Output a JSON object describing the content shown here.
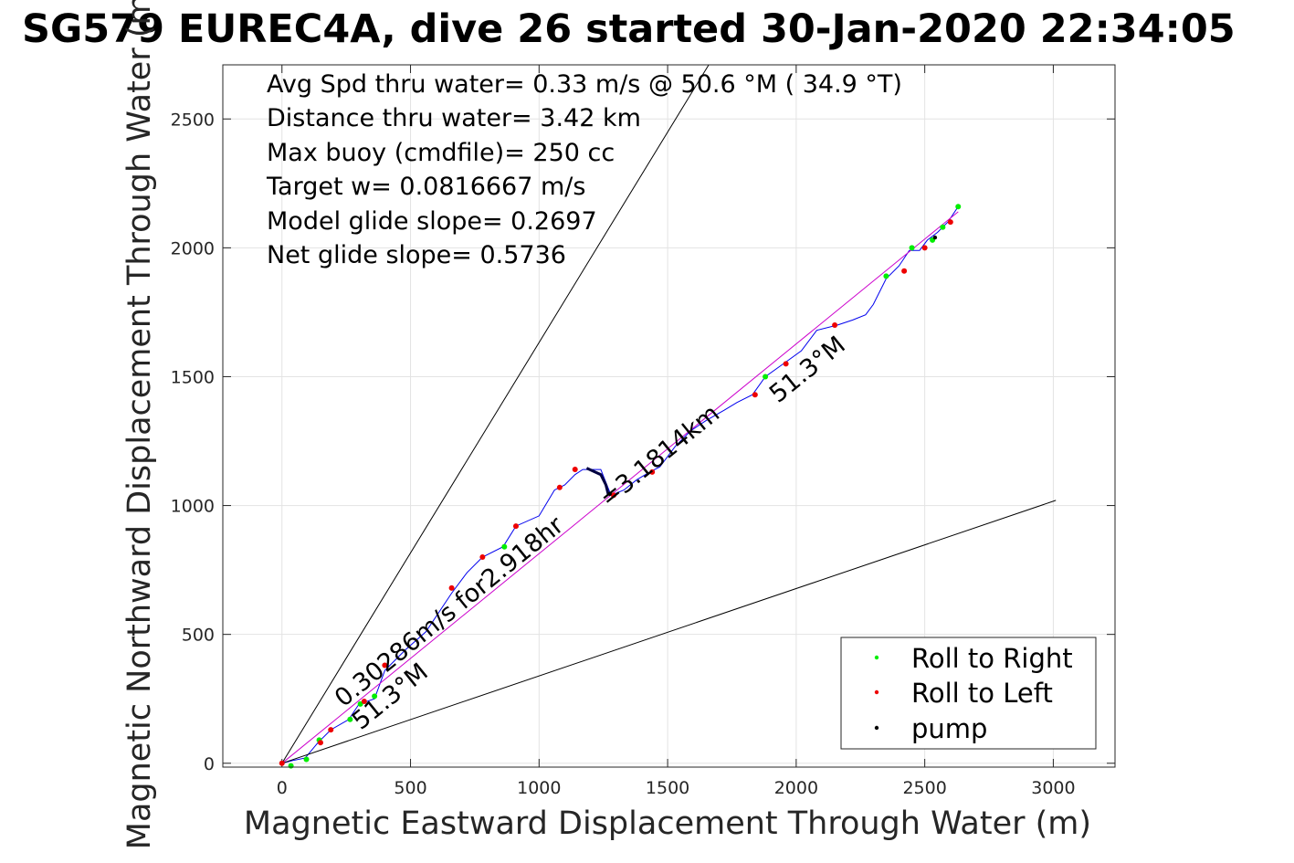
{
  "chart_data": {
    "type": "line",
    "title": "SG579 EUREC4A, dive 26 started 30-Jan-2020 22:34:05",
    "xlabel": "Magnetic Eastward Displacement Through Water (m)",
    "ylabel": "Magnetic Northward Displacement Through Water (m)",
    "xlim": [
      -230,
      3240
    ],
    "ylim": [
      -15,
      2710
    ],
    "xticks": [
      0,
      500,
      1000,
      1500,
      2000,
      2500,
      3000
    ],
    "yticks": [
      0,
      500,
      1000,
      1500,
      2000,
      2500
    ],
    "grid": true,
    "stats": [
      "Avg Spd thru water=  0.33 m/s @  50.6 °M ( 34.9 °T)",
      "Distance thru water=  3.42 km",
      "Max buoy (cmdfile)= 250 cc",
      "Target w= 0.0816667 m/s",
      "Model glide slope= 0.2697",
      "Net glide slope= 0.5736"
    ],
    "annotations": {
      "start_heading": "51.3°M",
      "current_speed": "0.30286m/s for2.918hr",
      "distance": "=3.1814km",
      "end_heading": "51.3°M"
    },
    "legend": {
      "placement": "bottom-right",
      "entries": [
        {
          "label": "Roll to Right",
          "color": "#00ee00"
        },
        {
          "label": "Roll to Left",
          "color": "#ee0000"
        },
        {
          "label": "pump",
          "color": "#000000"
        }
      ]
    },
    "series": [
      {
        "color": "#0000ee",
        "points": [
          [
            0,
            0
          ],
          [
            40,
            10
          ],
          [
            90,
            20
          ],
          [
            140,
            80
          ],
          [
            190,
            130
          ],
          [
            260,
            170
          ],
          [
            300,
            230
          ],
          [
            360,
            250
          ],
          [
            400,
            360
          ],
          [
            480,
            440
          ],
          [
            560,
            510
          ],
          [
            660,
            660
          ],
          [
            720,
            740
          ],
          [
            780,
            800
          ],
          [
            860,
            840
          ],
          [
            910,
            920
          ],
          [
            1000,
            960
          ],
          [
            1060,
            1060
          ],
          [
            1100,
            1080
          ],
          [
            1140,
            1120
          ],
          [
            1170,
            1140
          ],
          [
            1240,
            1140
          ],
          [
            1280,
            1040
          ],
          [
            1330,
            1060
          ],
          [
            1380,
            1100
          ],
          [
            1430,
            1130
          ],
          [
            1470,
            1150
          ],
          [
            1530,
            1230
          ],
          [
            1590,
            1290
          ],
          [
            1650,
            1330
          ],
          [
            1720,
            1370
          ],
          [
            1770,
            1400
          ],
          [
            1830,
            1430
          ],
          [
            1880,
            1500
          ],
          [
            1950,
            1550
          ],
          [
            2020,
            1600
          ],
          [
            2080,
            1680
          ],
          [
            2160,
            1700
          ],
          [
            2220,
            1720
          ],
          [
            2270,
            1740
          ],
          [
            2300,
            1780
          ],
          [
            2350,
            1880
          ],
          [
            2400,
            1930
          ],
          [
            2440,
            1990
          ],
          [
            2480,
            1990
          ],
          [
            2510,
            2030
          ],
          [
            2550,
            2060
          ],
          [
            2590,
            2100
          ],
          [
            2630,
            2160
          ]
        ]
      },
      {
        "color": "#cc00cc",
        "points": [
          [
            0,
            0
          ],
          [
            2630,
            2140
          ]
        ]
      },
      {
        "color": "#000000",
        "points": [
          [
            0,
            0
          ],
          [
            1660,
            2710
          ]
        ]
      },
      {
        "color": "#000000",
        "points": [
          [
            0,
            0
          ],
          [
            3010,
            1020
          ]
        ]
      },
      {
        "color": "#000040",
        "points": [
          [
            1185,
            1145
          ],
          [
            1240,
            1120
          ],
          [
            1260,
            1080
          ],
          [
            1270,
            1040
          ]
        ]
      }
    ],
    "roll_right_points": [
      [
        35,
        -10
      ],
      [
        95,
        15
      ],
      [
        145,
        90
      ],
      [
        265,
        170
      ],
      [
        305,
        230
      ],
      [
        360,
        260
      ],
      [
        865,
        840
      ],
      [
        1880,
        1500
      ],
      [
        2350,
        1890
      ],
      [
        2450,
        2000
      ],
      [
        2530,
        2030
      ],
      [
        2570,
        2080
      ],
      [
        2630,
        2160
      ]
    ],
    "roll_left_points": [
      [
        0,
        0
      ],
      [
        150,
        80
      ],
      [
        190,
        130
      ],
      [
        320,
        240
      ],
      [
        400,
        380
      ],
      [
        660,
        680
      ],
      [
        780,
        800
      ],
      [
        910,
        920
      ],
      [
        1080,
        1070
      ],
      [
        1140,
        1140
      ],
      [
        1290,
        1040
      ],
      [
        1440,
        1130
      ],
      [
        1840,
        1430
      ],
      [
        1960,
        1550
      ],
      [
        2150,
        1700
      ],
      [
        2420,
        1910
      ],
      [
        2500,
        2000
      ],
      [
        2600,
        2100
      ]
    ],
    "pump_points": [
      [
        1275,
        1045
      ],
      [
        2540,
        2040
      ]
    ]
  }
}
